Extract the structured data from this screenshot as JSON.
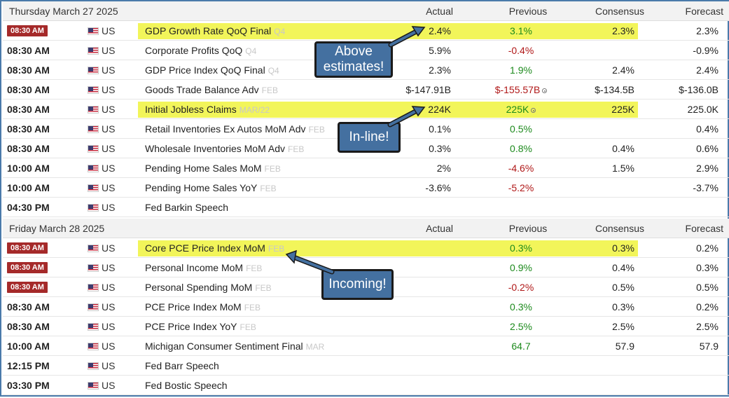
{
  "sections": [
    {
      "date": "Thursday March 27 2025",
      "headers": {
        "actual": "Actual",
        "previous": "Previous",
        "consensus": "Consensus",
        "forecast": "Forecast"
      },
      "rows": [
        {
          "time": "08:30 AM",
          "badge": true,
          "country": "US",
          "event": "GDP Growth Rate QoQ Final",
          "ref": "Q4",
          "actual": "2.4%",
          "previous": "3.1%",
          "previous_color": "green",
          "consensus": "2.3%",
          "forecast": "2.3%",
          "revised": false
        },
        {
          "time": "08:30 AM",
          "badge": false,
          "country": "US",
          "event": "Corporate Profits QoQ",
          "ref": "Q4",
          "actual": "5.9%",
          "previous": "-0.4%",
          "previous_color": "red",
          "consensus": "",
          "forecast": "-0.9%",
          "revised": false
        },
        {
          "time": "08:30 AM",
          "badge": false,
          "country": "US",
          "event": "GDP Price Index QoQ Final",
          "ref": "Q4",
          "actual": "2.3%",
          "previous": "1.9%",
          "previous_color": "green",
          "consensus": "2.4%",
          "forecast": "2.4%",
          "revised": false
        },
        {
          "time": "08:30 AM",
          "badge": false,
          "country": "US",
          "event": "Goods Trade Balance Adv",
          "ref": "FEB",
          "actual": "$-147.91B",
          "previous": "$-155.57B",
          "previous_color": "red",
          "consensus": "$-134.5B",
          "forecast": "$-136.0B",
          "revised": true
        },
        {
          "time": "08:30 AM",
          "badge": false,
          "country": "US",
          "event": "Initial Jobless Claims",
          "ref": "MAR/22",
          "actual": "224K",
          "previous": "225K",
          "previous_color": "green",
          "consensus": "225K",
          "forecast": "225.0K",
          "revised": true
        },
        {
          "time": "08:30 AM",
          "badge": false,
          "country": "US",
          "event": "Retail Inventories Ex Autos MoM Adv",
          "ref": "FEB",
          "actual": "0.1%",
          "previous": "0.5%",
          "previous_color": "green",
          "consensus": "",
          "forecast": "0.4%",
          "revised": false
        },
        {
          "time": "08:30 AM",
          "badge": false,
          "country": "US",
          "event": "Wholesale Inventories MoM Adv",
          "ref": "FEB",
          "actual": "0.3%",
          "previous": "0.8%",
          "previous_color": "green",
          "consensus": "0.4%",
          "forecast": "0.6%",
          "revised": false
        },
        {
          "time": "10:00 AM",
          "badge": false,
          "country": "US",
          "event": "Pending Home Sales MoM",
          "ref": "FEB",
          "actual": "2%",
          "previous": "-4.6%",
          "previous_color": "red",
          "consensus": "1.5%",
          "forecast": "2.9%",
          "revised": false
        },
        {
          "time": "10:00 AM",
          "badge": false,
          "country": "US",
          "event": "Pending Home Sales YoY",
          "ref": "FEB",
          "actual": "-3.6%",
          "previous": "-5.2%",
          "previous_color": "red",
          "consensus": "",
          "forecast": "-3.7%",
          "revised": false
        },
        {
          "time": "04:30 PM",
          "badge": false,
          "country": "US",
          "event": "Fed Barkin Speech",
          "ref": "",
          "actual": "",
          "previous": "",
          "previous_color": "green",
          "consensus": "",
          "forecast": "",
          "revised": false
        }
      ]
    },
    {
      "date": "Friday March 28 2025",
      "headers": {
        "actual": "Actual",
        "previous": "Previous",
        "consensus": "Consensus",
        "forecast": "Forecast"
      },
      "rows": [
        {
          "time": "08:30 AM",
          "badge": true,
          "country": "US",
          "event": "Core PCE Price Index MoM",
          "ref": "FEB",
          "actual": "",
          "previous": "0.3%",
          "previous_color": "green",
          "consensus": "0.3%",
          "forecast": "0.2%",
          "revised": false
        },
        {
          "time": "08:30 AM",
          "badge": true,
          "country": "US",
          "event": "Personal Income MoM",
          "ref": "FEB",
          "actual": "",
          "previous": "0.9%",
          "previous_color": "green",
          "consensus": "0.4%",
          "forecast": "0.3%",
          "revised": false
        },
        {
          "time": "08:30 AM",
          "badge": true,
          "country": "US",
          "event": "Personal Spending MoM",
          "ref": "FEB",
          "actual": "",
          "previous": "-0.2%",
          "previous_color": "red",
          "consensus": "0.5%",
          "forecast": "0.5%",
          "revised": false
        },
        {
          "time": "08:30 AM",
          "badge": false,
          "country": "US",
          "event": "PCE Price Index MoM",
          "ref": "FEB",
          "actual": "",
          "previous": "0.3%",
          "previous_color": "green",
          "consensus": "0.3%",
          "forecast": "0.2%",
          "revised": false
        },
        {
          "time": "08:30 AM",
          "badge": false,
          "country": "US",
          "event": "PCE Price Index YoY",
          "ref": "FEB",
          "actual": "",
          "previous": "2.5%",
          "previous_color": "green",
          "consensus": "2.5%",
          "forecast": "2.5%",
          "revised": false
        },
        {
          "time": "10:00 AM",
          "badge": false,
          "country": "US",
          "event": "Michigan Consumer Sentiment Final",
          "ref": "MAR",
          "actual": "",
          "previous": "64.7",
          "previous_color": "green",
          "consensus": "57.9",
          "forecast": "57.9",
          "revised": false
        },
        {
          "time": "12:15 PM",
          "badge": false,
          "country": "US",
          "event": "Fed Barr Speech",
          "ref": "",
          "actual": "",
          "previous": "",
          "previous_color": "green",
          "consensus": "",
          "forecast": "",
          "revised": false
        },
        {
          "time": "03:30 PM",
          "badge": false,
          "country": "US",
          "event": "Fed Bostic Speech",
          "ref": "",
          "actual": "",
          "previous": "",
          "previous_color": "green",
          "consensus": "",
          "forecast": "",
          "revised": false
        }
      ]
    }
  ],
  "callouts": {
    "above": "Above estimates!",
    "inline": "In-line!",
    "incoming": "Incoming!"
  },
  "colors": {
    "highlight": "#f2f55a",
    "callout_bg": "#4470a0",
    "badge": "#a52a2a",
    "positive": "#1d8a1d",
    "negative": "#b01818",
    "frame": "#4a7aaa"
  },
  "icons": {
    "flag": "us-flag-icon",
    "revised": "revised-dot-icon"
  }
}
